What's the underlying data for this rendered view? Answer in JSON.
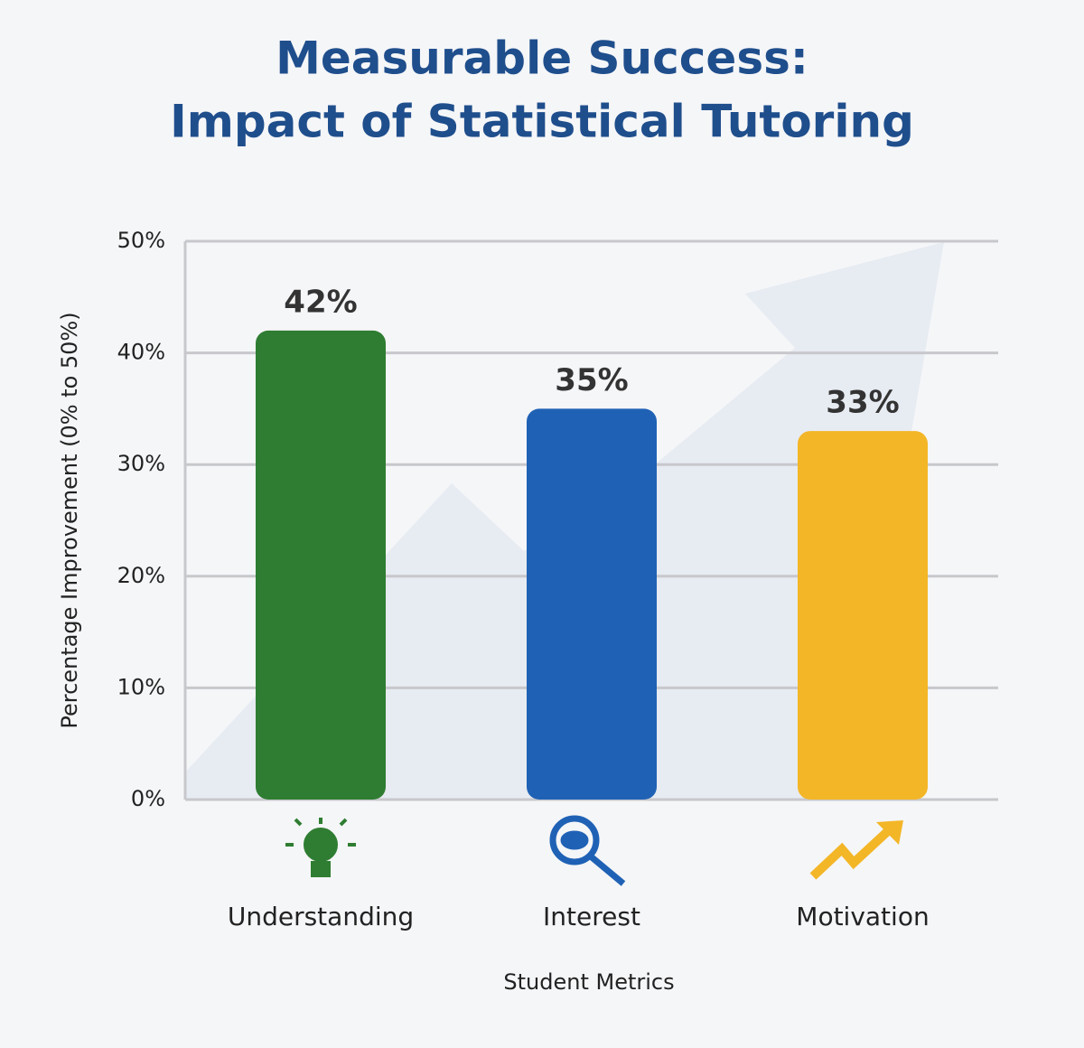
{
  "chart_data": {
    "type": "bar",
    "title": [
      "Measurable Success:",
      "Impact of Statistical Tutoring"
    ],
    "y_label": "Percentage Improvement (0% to 50%)",
    "x_label": "Student Metrics",
    "categories": [
      "Understanding",
      "Interest",
      "Motivation"
    ],
    "values": [
      42,
      35,
      33
    ],
    "value_labels": [
      "42%",
      "35%",
      "33%"
    ],
    "colors": [
      "#2f7d32",
      "#1f62b5",
      "#f3b627"
    ],
    "ylim": [
      0,
      50
    ],
    "yticks": [
      {
        "value": 0,
        "label": "0%"
      },
      {
        "value": 10,
        "label": "10%"
      },
      {
        "value": 20,
        "label": "20%"
      },
      {
        "value": 30,
        "label": "30%"
      },
      {
        "value": 40,
        "label": "40%"
      },
      {
        "value": 50,
        "label": "50%"
      }
    ],
    "grid": true
  }
}
